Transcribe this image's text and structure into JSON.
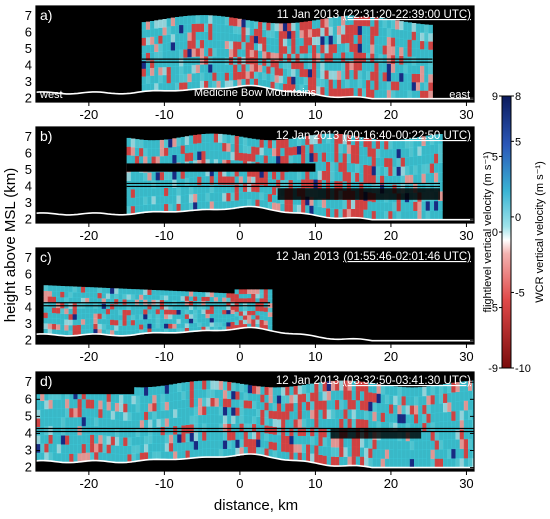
{
  "chart_data": {
    "type": "heatmap",
    "description_axes": {
      "xlabel": "distance, km",
      "ylabel": "height above MSL (km)",
      "xlim": [
        -27,
        31
      ],
      "ylim": [
        1.8,
        7.6
      ],
      "xticks": [
        -20,
        -10,
        0,
        10,
        20,
        30
      ],
      "yticks": [
        2,
        3,
        4,
        5,
        6,
        7
      ]
    },
    "colorbar": {
      "left_label": "flightlevel  vertical velocity (m s⁻¹)",
      "right_label": "WCR vertical velocity (m s⁻¹)",
      "left_ticks": [
        9,
        5,
        0,
        -5,
        -9
      ],
      "right_ticks": [
        8,
        5,
        0,
        -5,
        -10
      ],
      "range": [
        -10,
        8
      ]
    },
    "panels": [
      {
        "label": "a)",
        "date": "11 Jan 2013",
        "time": "(22:31:20-22:39:00 UTC)",
        "annotations": [
          "west",
          "Medicine Bow Mountains",
          "east"
        ],
        "flight_level_km": 4.3,
        "echo_x_range": [
          -13,
          25.5
        ]
      },
      {
        "label": "b)",
        "date": "12 Jan 2013",
        "time": "(00:16:40-00:22:50 UTC)",
        "annotations": [],
        "flight_level_km": 4.1,
        "echo_x_range": [
          -15,
          26.5
        ]
      },
      {
        "label": "c)",
        "date": "12 Jan 2013",
        "time": "(01:55:46-02:01:46 UTC)",
        "annotations": [],
        "flight_level_km": 4.2,
        "echo_x_range": [
          -26,
          4
        ]
      },
      {
        "label": "d)",
        "date": "12 Jan 2013",
        "time": "(03:32:50-03:41:30 UTC)",
        "annotations": [],
        "flight_level_km": 4.2,
        "echo_x_range": [
          -27,
          31
        ]
      }
    ]
  },
  "colors": {
    "background": "#000000",
    "echo_base": "#3ec8d8",
    "updraft": "#e04848",
    "strong_downdraft": "#1a2e8c",
    "terrain_line": "#ffffff"
  }
}
